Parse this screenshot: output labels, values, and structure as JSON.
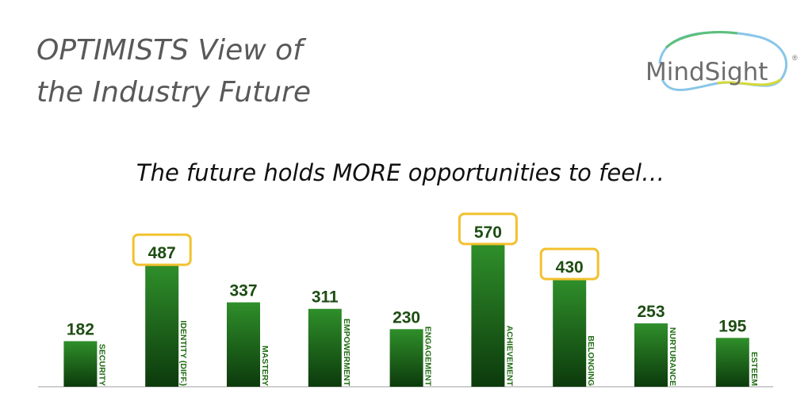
{
  "logo": {
    "name": "MindSight",
    "mark": "®"
  },
  "chart_data": {
    "type": "bar",
    "title": [
      "OPTIMISTS View of",
      "the Industry Future"
    ],
    "subtitle": "The future holds MORE opportunities to feel…",
    "categories": [
      "SECURITY",
      "IDENTITY (DIFF.)",
      "MASTERY",
      "EMPOWERMENT",
      "ENGAGEMENT",
      "ACHIEVEMENT",
      "BELONGING",
      "NURTURANCE",
      "ESTEEM"
    ],
    "values": [
      182,
      487,
      337,
      311,
      230,
      570,
      430,
      253,
      195
    ],
    "color": "#2f8f2a",
    "highlighted": [
      false,
      true,
      false,
      false,
      false,
      true,
      true,
      false,
      false
    ],
    "highlight_color": "#f2c12e"
  }
}
